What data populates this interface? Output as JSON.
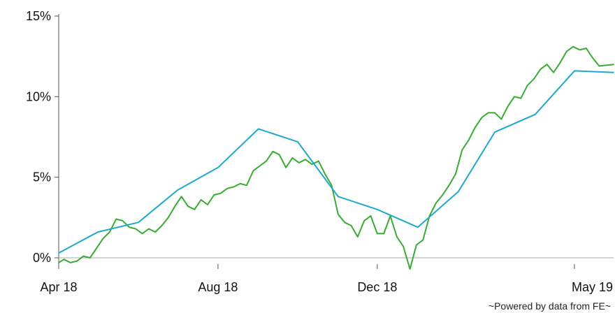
{
  "credit": "~Powered by data from FE~",
  "chart_data": {
    "type": "line",
    "title": "",
    "xlabel": "",
    "ylabel": "",
    "x_range": [
      "2018-04-01",
      "2019-05-31"
    ],
    "ylim": [
      -1,
      15
    ],
    "y_ticks": [
      {
        "value": 0,
        "label": "0%"
      },
      {
        "value": 5,
        "label": "5%"
      },
      {
        "value": 10,
        "label": "10%"
      },
      {
        "value": 15,
        "label": "15%"
      }
    ],
    "x_ticks": [
      {
        "date": "2018-04-01",
        "label": "Apr 18"
      },
      {
        "date": "2018-08-01",
        "label": "Aug 18"
      },
      {
        "date": "2018-12-01",
        "label": "Dec 18"
      },
      {
        "date": "2019-05-01",
        "label": "May 19"
      }
    ],
    "zero_line": true,
    "grid": false,
    "legend": "none",
    "series": [
      {
        "color": "#3aaa35",
        "points": [
          [
            "2018-04-01",
            -0.3
          ],
          [
            "2018-04-05",
            -0.1
          ],
          [
            "2018-04-10",
            -0.3
          ],
          [
            "2018-04-15",
            -0.2
          ],
          [
            "2018-04-20",
            0.1
          ],
          [
            "2018-04-25",
            0.0
          ],
          [
            "2018-04-30",
            0.6
          ],
          [
            "2018-05-05",
            1.2
          ],
          [
            "2018-05-10",
            1.6
          ],
          [
            "2018-05-15",
            2.4
          ],
          [
            "2018-05-20",
            2.3
          ],
          [
            "2018-05-25",
            1.9
          ],
          [
            "2018-05-30",
            1.8
          ],
          [
            "2018-06-04",
            1.5
          ],
          [
            "2018-06-09",
            1.8
          ],
          [
            "2018-06-14",
            1.6
          ],
          [
            "2018-06-19",
            2.0
          ],
          [
            "2018-06-24",
            2.5
          ],
          [
            "2018-06-29",
            3.2
          ],
          [
            "2018-07-04",
            3.8
          ],
          [
            "2018-07-09",
            3.2
          ],
          [
            "2018-07-14",
            3.0
          ],
          [
            "2018-07-19",
            3.6
          ],
          [
            "2018-07-24",
            3.3
          ],
          [
            "2018-07-29",
            3.9
          ],
          [
            "2018-08-03",
            4.0
          ],
          [
            "2018-08-08",
            4.3
          ],
          [
            "2018-08-13",
            4.4
          ],
          [
            "2018-08-18",
            4.6
          ],
          [
            "2018-08-23",
            4.5
          ],
          [
            "2018-08-28",
            5.4
          ],
          [
            "2018-09-02",
            5.7
          ],
          [
            "2018-09-07",
            6.0
          ],
          [
            "2018-09-12",
            6.6
          ],
          [
            "2018-09-17",
            6.4
          ],
          [
            "2018-09-22",
            5.6
          ],
          [
            "2018-09-27",
            6.2
          ],
          [
            "2018-10-02",
            5.9
          ],
          [
            "2018-10-07",
            6.1
          ],
          [
            "2018-10-12",
            5.8
          ],
          [
            "2018-10-17",
            6.0
          ],
          [
            "2018-10-22",
            5.2
          ],
          [
            "2018-10-27",
            4.5
          ],
          [
            "2018-11-01",
            2.7
          ],
          [
            "2018-11-06",
            2.2
          ],
          [
            "2018-11-11",
            2.0
          ],
          [
            "2018-11-16",
            1.3
          ],
          [
            "2018-11-21",
            2.3
          ],
          [
            "2018-11-26",
            2.6
          ],
          [
            "2018-12-01",
            1.5
          ],
          [
            "2018-12-06",
            1.5
          ],
          [
            "2018-12-11",
            2.6
          ],
          [
            "2018-12-16",
            1.3
          ],
          [
            "2018-12-21",
            0.7
          ],
          [
            "2018-12-26",
            -0.7
          ],
          [
            "2018-12-31",
            0.8
          ],
          [
            "2019-01-05",
            1.1
          ],
          [
            "2019-01-10",
            2.6
          ],
          [
            "2019-01-15",
            3.4
          ],
          [
            "2019-01-20",
            3.9
          ],
          [
            "2019-01-25",
            4.5
          ],
          [
            "2019-01-30",
            5.2
          ],
          [
            "2019-02-04",
            6.7
          ],
          [
            "2019-02-09",
            7.3
          ],
          [
            "2019-02-14",
            8.1
          ],
          [
            "2019-02-19",
            8.7
          ],
          [
            "2019-02-24",
            9.0
          ],
          [
            "2019-03-01",
            9.0
          ],
          [
            "2019-03-06",
            8.6
          ],
          [
            "2019-03-11",
            9.4
          ],
          [
            "2019-03-16",
            10.0
          ],
          [
            "2019-03-21",
            9.9
          ],
          [
            "2019-03-26",
            10.7
          ],
          [
            "2019-03-31",
            11.1
          ],
          [
            "2019-04-05",
            11.7
          ],
          [
            "2019-04-10",
            12.0
          ],
          [
            "2019-04-15",
            11.5
          ],
          [
            "2019-04-20",
            12.1
          ],
          [
            "2019-04-25",
            12.8
          ],
          [
            "2019-04-30",
            13.1
          ],
          [
            "2019-05-05",
            12.9
          ],
          [
            "2019-05-10",
            13.0
          ],
          [
            "2019-05-15",
            12.4
          ],
          [
            "2019-05-20",
            11.9
          ],
          [
            "2019-05-31",
            12.0
          ]
        ]
      },
      {
        "color": "#1fa8c9",
        "points": [
          [
            "2018-04-01",
            0.3
          ],
          [
            "2018-05-01",
            1.6
          ],
          [
            "2018-06-01",
            2.2
          ],
          [
            "2018-07-01",
            4.2
          ],
          [
            "2018-08-01",
            5.6
          ],
          [
            "2018-09-01",
            8.0
          ],
          [
            "2018-10-01",
            7.2
          ],
          [
            "2018-11-01",
            3.8
          ],
          [
            "2018-12-01",
            3.0
          ],
          [
            "2019-01-01",
            1.9
          ],
          [
            "2019-02-01",
            4.1
          ],
          [
            "2019-03-01",
            7.8
          ],
          [
            "2019-04-01",
            8.9
          ],
          [
            "2019-05-01",
            11.6
          ],
          [
            "2019-05-31",
            11.5
          ]
        ]
      }
    ]
  }
}
